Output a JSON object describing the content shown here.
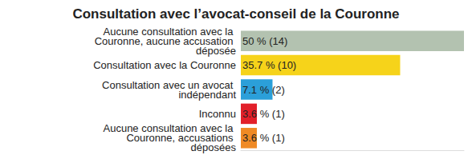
{
  "chart_data": {
    "type": "bar",
    "title": "Consultation avec l’avocat-conseil de la Couronne",
    "orientation": "horizontal",
    "categories": [
      "Aucune consultation avec la Couronne, aucune accusation déposée",
      "Consultation avec la Couronne",
      "Consultation avec un avocat indépendant",
      "Inconnu",
      "Aucune consultation avec la Couronne, accusations déposées"
    ],
    "values": [
      50,
      35.7,
      7.1,
      3.6,
      3.6
    ],
    "value_labels": [
      "50 % (14)",
      "35.7 % (10)",
      "7.1 % (2)",
      "3.6 % (1)",
      "3.6 % (1)"
    ],
    "colors": [
      "#b3c2b0",
      "#f6d31a",
      "#2b9fd9",
      "#e2202a",
      "#ef8a25"
    ],
    "xlim": [
      0,
      50
    ],
    "data_labels": true,
    "tick_labels": "y",
    "grid": false
  }
}
